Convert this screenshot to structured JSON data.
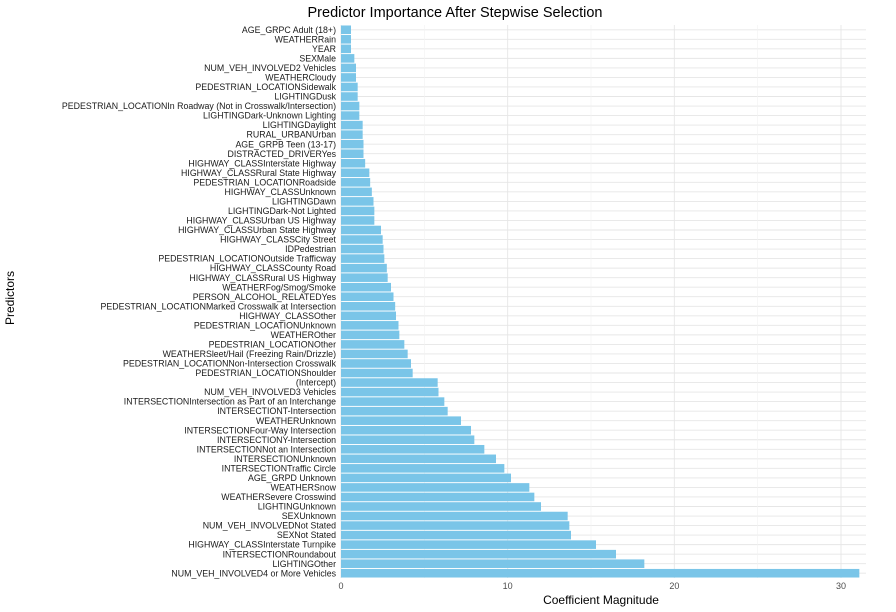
{
  "chart_data": {
    "type": "bar",
    "orientation": "horizontal",
    "title": "Predictor Importance After Stepwise Selection",
    "xlabel": "Coefficient Magnitude",
    "ylabel": "Predictors",
    "xlim": [
      0,
      31.5
    ],
    "xticks": [
      0,
      10,
      20,
      30
    ],
    "grid": true,
    "bar_color": "#7AC5E8",
    "categories": [
      "AGE_GRPC Adult (18+)",
      "WEATHERRain",
      "YEAR",
      "SEXMale",
      "NUM_VEH_INVOLVED2 Vehicles",
      "WEATHERCloudy",
      "PEDESTRIAN_LOCATIONSidewalk",
      "LIGHTINGDusk",
      "PEDESTRIAN_LOCATIONIn Roadway (Not in Crosswalk/Intersection)",
      "LIGHTINGDark-Unknown Lighting",
      "LIGHTINGDaylight",
      "RURAL_URBANUrban",
      "AGE_GRPB Teen (13-17)",
      "DISTRACTED_DRIVERYes",
      "HIGHWAY_CLASSInterstate Highway",
      "HIGHWAY_CLASSRural State Highway",
      "PEDESTRIAN_LOCATIONRoadside",
      "HIGHWAY_CLASSUnknown",
      "LIGHTINGDawn",
      "LIGHTINGDark-Not Lighted",
      "HIGHWAY_CLASSUrban US Highway",
      "HIGHWAY_CLASSUrban State Highway",
      "HIGHWAY_CLASSCity Street",
      "IDPedestrian",
      "PEDESTRIAN_LOCATIONOutside Trafficway",
      "HIGHWAY_CLASSCounty Road",
      "HIGHWAY_CLASSRural US Highway",
      "WEATHERFog/Smog/Smoke",
      "PERSON_ALCOHOL_RELATEDYes",
      "PEDESTRIAN_LOCATIONMarked Crosswalk at Intersection",
      "HIGHWAY_CLASSOther",
      "PEDESTRIAN_LOCATIONUnknown",
      "WEATHEROther",
      "PEDESTRIAN_LOCATIONOther",
      "WEATHERSleet/Hail (Freezing Rain/Drizzle)",
      "PEDESTRIAN_LOCATIONNon-Intersection Crosswalk",
      "PEDESTRIAN_LOCATIONShoulder",
      "(Intercept)",
      "NUM_VEH_INVOLVED3 Vehicles",
      "INTERSECTIONIntersection as Part of an Interchange",
      "INTERSECTIONT-Intersection",
      "WEATHERUnknown",
      "INTERSECTIONFour-Way Intersection",
      "INTERSECTIONY-Intersection",
      "INTERSECTIONNot an Intersection",
      "INTERSECTIONUnknown",
      "INTERSECTIONTraffic Circle",
      "AGE_GRPD Unknown",
      "WEATHERSnow",
      "WEATHERSevere Crosswind",
      "LIGHTINGUnknown",
      "SEXUnknown",
      "NUM_VEH_INVOLVEDNot Stated",
      "SEXNot Stated",
      "HIGHWAY_CLASSInterstate Turnpike",
      "INTERSECTIONRoundabout",
      "LIGHTINGOther",
      "NUM_VEH_INVOLVED4 or More Vehicles"
    ],
    "values": [
      0.6,
      0.6,
      0.6,
      0.8,
      0.9,
      0.9,
      1.0,
      1.0,
      1.1,
      1.1,
      1.3,
      1.3,
      1.35,
      1.35,
      1.45,
      1.7,
      1.75,
      1.85,
      1.95,
      2.0,
      2.0,
      2.4,
      2.5,
      2.55,
      2.6,
      2.75,
      2.8,
      3.0,
      3.15,
      3.25,
      3.3,
      3.45,
      3.5,
      3.8,
      4.0,
      4.2,
      4.3,
      5.8,
      5.85,
      6.2,
      6.4,
      7.2,
      7.8,
      8.0,
      8.6,
      9.3,
      9.8,
      10.2,
      11.3,
      11.6,
      12.0,
      13.6,
      13.7,
      13.8,
      15.3,
      16.5,
      18.2,
      31.1
    ]
  }
}
